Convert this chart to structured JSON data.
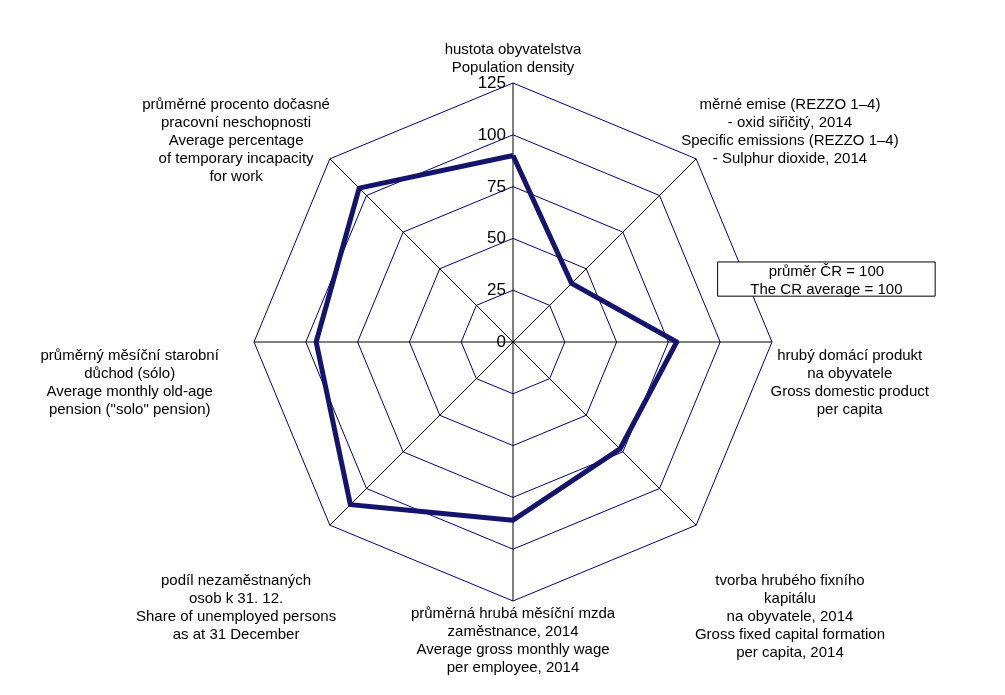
{
  "chart_data": {
    "type": "radar",
    "grid": true,
    "categories": [
      "hustota obyvatelstva\nPopulation density",
      "měrné emise (REZZO 1–4)\n- oxid siřičitý, 2014\nSpecific emissions (REZZO 1–4)\n- Sulphur dioxide, 2014",
      "hrubý domácí produkt\nna obyvatele\nGross domestic product\nper capita",
      "tvorba hrubého fixního\nkapitálu\nna obyvatele, 2014\nGross fixed capital formation\nper capita, 2014",
      "průměrná hrubá měsíční mzda\nzaměstnance, 2014\nAverage gross monthly wage\nper employee, 2014",
      "podíl nezaměstnaných\nosob k 31. 12.\nShare of unemployed persons\nas at 31 December",
      "průměrný měsíční starobní\ndůchod (sólo)\nAverage monthly old-age\npension (\"solo\" pension)",
      "průměrné procento dočasné\npracovní  neschopnosti\nAverage percentage\nof temporary incapacity\nfor work"
    ],
    "series": [
      {
        "color": "#14146e",
        "values": [
          90,
          40,
          79,
          73,
          86,
          111,
          95,
          105
        ]
      }
    ],
    "ylim": [
      0,
      125
    ],
    "yticks": [
      0,
      25,
      50,
      75,
      100,
      125
    ],
    "annotations": [
      "průměr  ČR = 100\nThe CR average  = 100"
    ]
  }
}
